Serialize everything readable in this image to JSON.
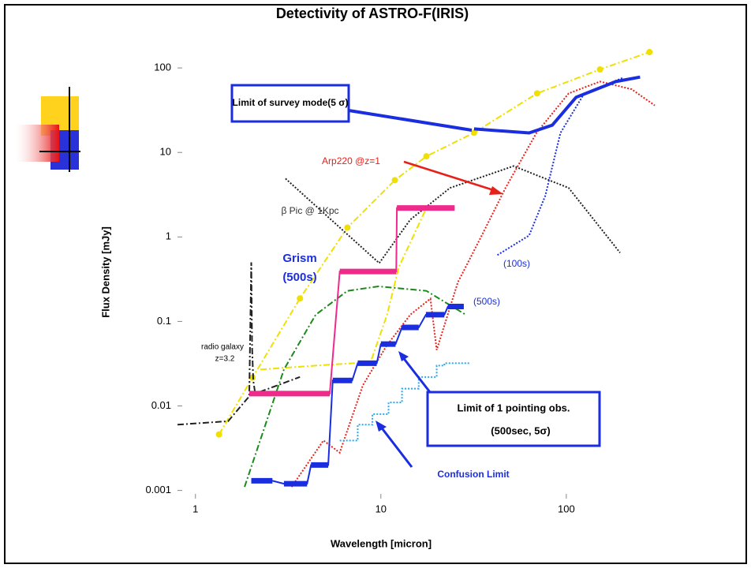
{
  "chart_data": {
    "type": "line",
    "title": "Detectivity of ASTRO-F(IRIS)",
    "x_label": "Wavelength [micron]",
    "y_label": "Flux Density  [mJy]",
    "x_log": true,
    "y_log": true,
    "xlim": [
      0.8,
      300
    ],
    "ylim": [
      0.0008,
      300
    ],
    "xticks": [
      1,
      10,
      100
    ],
    "yticks": [
      0.001,
      0.01,
      0.1,
      1,
      10,
      100
    ],
    "annotations": [
      "Limit of survey mode(5 σ)",
      "Arp220 @z=1",
      "β Pic @ 1Kpc",
      "Grism",
      "(500s)",
      "(100s)",
      "(500s)",
      "radio galaxy",
      "z=3.2",
      "Limit of  1 pointing obs.",
      "(500sec, 5σ)",
      "Confusion Limit"
    ],
    "series": [
      {
        "color": "#f0e000",
        "style": "dashdot",
        "markers": true,
        "x": [
          1.34,
          2.03,
          3.66,
          6.6,
          11.9,
          17.6,
          31.8,
          69.6,
          152,
          281
        ],
        "values": [
          0.0046,
          0.0216,
          0.187,
          1.29,
          4.7,
          9.0,
          17.1,
          50,
          96,
          154
        ]
      },
      {
        "color": "#f0e000",
        "style": "dashdot",
        "x": [
          2.24,
          4.45,
          8.8,
          10.8,
          12.5,
          17.6
        ],
        "values": [
          0.027,
          0.03,
          0.033,
          0.12,
          0.44,
          2.2
        ]
      },
      {
        "color": "#222222",
        "style": "dashdot",
        "x": [
          0.8,
          1.5,
          1.95,
          2.0,
          2.02,
          2.05,
          2.1,
          3.66
        ],
        "values": [
          0.006,
          0.0066,
          0.013,
          0.5,
          0.05,
          0.02,
          0.014,
          0.022
        ]
      },
      {
        "color": "#222222",
        "style": "dotted",
        "x": [
          3.06,
          9.8,
          14.4,
          23.6,
          52,
          103,
          195
        ],
        "values": [
          4.9,
          0.49,
          1.6,
          3.8,
          6.9,
          3.8,
          0.65
        ]
      },
      {
        "color": "#e8201a",
        "style": "dotted",
        "x": [
          3.3,
          4.9,
          6.0,
          8.0,
          10.7,
          14.4,
          18.5,
          20,
          26,
          35,
          47,
          69,
          103,
          152,
          225,
          300
        ],
        "values": [
          0.0011,
          0.0039,
          0.0028,
          0.0176,
          0.051,
          0.12,
          0.186,
          0.046,
          0.29,
          1.04,
          3.8,
          17,
          50,
          69,
          56,
          36
        ]
      },
      {
        "color": "#1a2ee0",
        "style": "thick",
        "x": [
          31.8,
          63,
          84,
          113,
          185,
          250
        ],
        "values": [
          19,
          17,
          21,
          45,
          69,
          78
        ]
      },
      {
        "color": "#1a2ee0",
        "style": "dotted",
        "x": [
          42.5,
          63,
          77,
          93,
          125,
          204
        ],
        "values": [
          0.61,
          1.04,
          3.06,
          17,
          50,
          77
        ]
      },
      {
        "color": "#1a8a1a",
        "style": "dashdot",
        "x": [
          1.84,
          3.0,
          4.45,
          6.6,
          9.7,
          17.6,
          28.7
        ],
        "values": [
          0.0011,
          0.027,
          0.12,
          0.23,
          0.26,
          0.23,
          0.12
        ]
      },
      {
        "color": "#ee2a8a",
        "style": "step",
        "x": [
          1.95,
          5.3,
          6.0,
          12.1,
          12.2,
          25
        ],
        "values": [
          0.014,
          0.014,
          0.39,
          0.39,
          2.2,
          2.2
        ]
      },
      {
        "color": "#1a2ee0",
        "style": "step",
        "x": [
          2.0,
          2.6,
          3.0,
          4.0,
          4.2,
          5.2,
          5.5,
          7.0,
          7.5,
          9.5,
          10,
          12,
          13,
          16,
          17.5,
          22,
          23,
          28
        ],
        "values": [
          0.0013,
          0.0013,
          0.0012,
          0.0012,
          0.002,
          0.002,
          0.02,
          0.02,
          0.032,
          0.032,
          0.054,
          0.054,
          0.085,
          0.085,
          0.12,
          0.12,
          0.15,
          0.15
        ]
      },
      {
        "color": "#2aa8ee",
        "style": "dotted",
        "x": [
          6,
          7.5,
          7.5,
          9,
          9,
          11,
          11,
          13,
          13,
          16,
          16,
          20,
          20,
          22,
          22,
          30
        ],
        "values": [
          0.0039,
          0.0039,
          0.006,
          0.006,
          0.008,
          0.008,
          0.011,
          0.011,
          0.016,
          0.016,
          0.022,
          0.022,
          0.03,
          0.03,
          0.032,
          0.032
        ]
      }
    ]
  }
}
